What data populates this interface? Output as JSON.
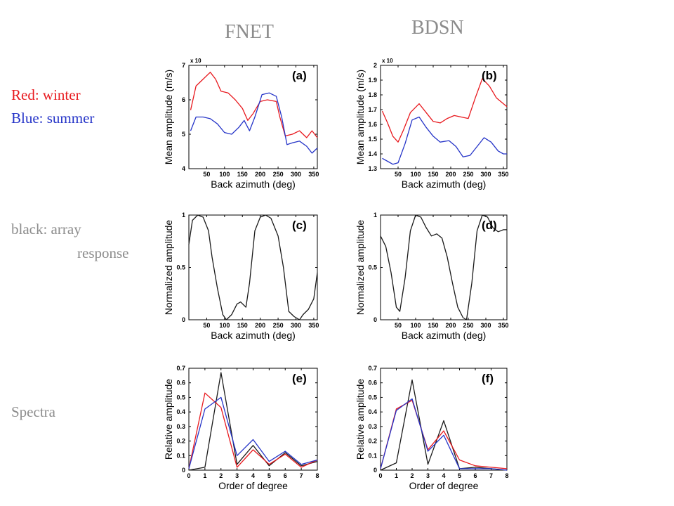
{
  "column_titles": {
    "left": "FNET",
    "right": "BDSN"
  },
  "legend_text": {
    "red": "Red: winter",
    "blue": "Blue: summer",
    "black_line1": "black: array",
    "black_line2": "response",
    "spectra": "Spectra"
  },
  "colors": {
    "red": "#e8191e",
    "blue": "#2534c8",
    "black": "#1a1a1a",
    "title_gray": "#8c8c8c",
    "side_gray": "#8c8c8c"
  },
  "chart_data": [
    {
      "id": "a",
      "tag": "(a)",
      "type": "line",
      "xlabel": "Back azimuth (deg)",
      "ylabel": "Mean amplitude (m/s)",
      "xlim": [
        0,
        360
      ],
      "ylim": [
        4,
        7
      ],
      "xticks": [
        50,
        100,
        150,
        200,
        250,
        300,
        350
      ],
      "yticks": [
        4,
        5,
        6,
        7
      ],
      "y_exponent": "x 10",
      "series": [
        {
          "color": "red",
          "x": [
            5,
            20,
            40,
            60,
            75,
            90,
            110,
            130,
            150,
            165,
            180,
            200,
            220,
            245,
            255,
            270,
            290,
            310,
            330,
            345,
            360
          ],
          "y": [
            5.7,
            6.4,
            6.6,
            6.8,
            6.6,
            6.25,
            6.2,
            6.0,
            5.75,
            5.4,
            5.6,
            5.95,
            6.0,
            5.95,
            5.5,
            4.95,
            5.0,
            5.1,
            4.9,
            5.1,
            4.9
          ]
        },
        {
          "color": "blue",
          "x": [
            5,
            20,
            40,
            60,
            80,
            100,
            120,
            140,
            155,
            170,
            185,
            205,
            225,
            245,
            260,
            275,
            290,
            310,
            330,
            345,
            360
          ],
          "y": [
            5.1,
            5.5,
            5.5,
            5.45,
            5.3,
            5.05,
            5.0,
            5.2,
            5.4,
            5.1,
            5.5,
            6.15,
            6.2,
            6.1,
            5.5,
            4.7,
            4.75,
            4.8,
            4.65,
            4.45,
            4.6
          ]
        }
      ]
    },
    {
      "id": "b",
      "tag": "(b)",
      "type": "line",
      "xlabel": "Back azimuth (deg)",
      "ylabel": "Mean amplitude (m/s)",
      "xlim": [
        0,
        360
      ],
      "ylim": [
        1.3,
        2.0
      ],
      "xticks": [
        50,
        100,
        150,
        200,
        250,
        300,
        350
      ],
      "yticks": [
        1.3,
        1.4,
        1.5,
        1.6,
        1.7,
        1.8,
        1.9,
        2.0
      ],
      "y_exponent": "x 10",
      "series": [
        {
          "color": "red",
          "x": [
            5,
            20,
            35,
            50,
            65,
            85,
            110,
            130,
            150,
            170,
            190,
            210,
            230,
            250,
            270,
            290,
            310,
            330,
            345,
            360
          ],
          "y": [
            1.69,
            1.61,
            1.52,
            1.48,
            1.56,
            1.68,
            1.74,
            1.68,
            1.62,
            1.61,
            1.64,
            1.66,
            1.65,
            1.64,
            1.78,
            1.91,
            1.86,
            1.78,
            1.75,
            1.72
          ]
        },
        {
          "color": "blue",
          "x": [
            5,
            20,
            35,
            50,
            70,
            90,
            110,
            130,
            150,
            170,
            195,
            215,
            235,
            255,
            275,
            295,
            315,
            335,
            350,
            360
          ],
          "y": [
            1.37,
            1.35,
            1.33,
            1.34,
            1.47,
            1.63,
            1.65,
            1.58,
            1.52,
            1.48,
            1.49,
            1.45,
            1.38,
            1.39,
            1.45,
            1.51,
            1.48,
            1.42,
            1.4,
            1.4
          ]
        }
      ]
    },
    {
      "id": "c",
      "tag": "(c)",
      "type": "line",
      "xlabel": "Back azimuth (deg)",
      "ylabel": "Normalized amplitude",
      "xlim": [
        0,
        360
      ],
      "ylim": [
        0,
        1.0
      ],
      "xticks": [
        50,
        100,
        150,
        200,
        250,
        300,
        350
      ],
      "yticks": [
        0,
        0.5,
        1.0
      ],
      "series": [
        {
          "color": "black",
          "x": [
            0,
            10,
            25,
            40,
            55,
            65,
            80,
            95,
            105,
            120,
            135,
            145,
            160,
            170,
            185,
            200,
            215,
            230,
            250,
            265,
            280,
            295,
            310,
            320,
            335,
            350,
            360
          ],
          "y": [
            0.72,
            0.95,
            1.0,
            0.98,
            0.85,
            0.6,
            0.3,
            0.05,
            0.0,
            0.05,
            0.15,
            0.17,
            0.12,
            0.35,
            0.85,
            0.98,
            1.0,
            0.97,
            0.8,
            0.5,
            0.08,
            0.03,
            0.0,
            0.05,
            0.1,
            0.2,
            0.45
          ]
        }
      ]
    },
    {
      "id": "d",
      "tag": "(d)",
      "type": "line",
      "xlabel": "Back azimuth (deg)",
      "ylabel": "Normalized amplitude",
      "xlim": [
        0,
        360
      ],
      "ylim": [
        0,
        1.0
      ],
      "xticks": [
        50,
        100,
        150,
        200,
        250,
        300,
        350
      ],
      "yticks": [
        0,
        0.5,
        1.0
      ],
      "series": [
        {
          "color": "black",
          "x": [
            0,
            15,
            30,
            45,
            55,
            70,
            85,
            100,
            115,
            130,
            145,
            160,
            175,
            190,
            205,
            220,
            235,
            245,
            260,
            275,
            290,
            305,
            320,
            335,
            350,
            360
          ],
          "y": [
            0.8,
            0.7,
            0.45,
            0.12,
            0.08,
            0.4,
            0.85,
            1.0,
            0.98,
            0.88,
            0.8,
            0.82,
            0.78,
            0.6,
            0.35,
            0.12,
            0.02,
            0.0,
            0.35,
            0.85,
            1.0,
            0.98,
            0.88,
            0.84,
            0.86,
            0.86
          ]
        }
      ]
    },
    {
      "id": "e",
      "tag": "(e)",
      "type": "line",
      "xlabel": "Order of degree",
      "ylabel": "Relative amplitude",
      "xlim": [
        0,
        8
      ],
      "ylim": [
        0,
        0.7
      ],
      "xticks": [
        0,
        1,
        2,
        3,
        4,
        5,
        6,
        7,
        8
      ],
      "yticks": [
        0,
        0.1,
        0.2,
        0.3,
        0.4,
        0.5,
        0.6,
        0.7
      ],
      "series": [
        {
          "color": "black",
          "x": [
            0,
            1,
            2,
            3,
            4,
            5,
            6,
            7,
            8
          ],
          "y": [
            0.0,
            0.02,
            0.67,
            0.04,
            0.17,
            0.03,
            0.12,
            0.03,
            0.06
          ]
        },
        {
          "color": "red",
          "x": [
            0,
            1,
            2,
            3,
            4,
            5,
            6,
            7,
            8
          ],
          "y": [
            0.01,
            0.53,
            0.43,
            0.02,
            0.14,
            0.04,
            0.11,
            0.02,
            0.07
          ]
        },
        {
          "color": "blue",
          "x": [
            0,
            1,
            2,
            3,
            4,
            5,
            6,
            7,
            8
          ],
          "y": [
            0.01,
            0.42,
            0.5,
            0.1,
            0.21,
            0.06,
            0.13,
            0.04,
            0.07
          ]
        }
      ]
    },
    {
      "id": "f",
      "tag": "(f)",
      "type": "line",
      "xlabel": "Order of degree",
      "ylabel": "Relative amplitude",
      "xlim": [
        0,
        8
      ],
      "ylim": [
        0,
        0.7
      ],
      "xticks": [
        0,
        1,
        2,
        3,
        4,
        5,
        6,
        7,
        8
      ],
      "yticks": [
        0,
        0.1,
        0.2,
        0.3,
        0.4,
        0.5,
        0.6,
        0.7
      ],
      "series": [
        {
          "color": "black",
          "x": [
            0,
            1,
            2,
            3,
            4,
            5,
            6,
            7,
            8
          ],
          "y": [
            0.0,
            0.05,
            0.62,
            0.04,
            0.34,
            0.01,
            0.02,
            0.01,
            0.0
          ]
        },
        {
          "color": "red",
          "x": [
            0,
            1,
            2,
            3,
            4,
            5,
            6,
            7,
            8
          ],
          "y": [
            0.01,
            0.42,
            0.48,
            0.14,
            0.27,
            0.07,
            0.03,
            0.02,
            0.01
          ]
        },
        {
          "color": "blue",
          "x": [
            0,
            1,
            2,
            3,
            4,
            5,
            6,
            7,
            8
          ],
          "y": [
            0.01,
            0.41,
            0.49,
            0.13,
            0.24,
            0.01,
            0.01,
            0.01,
            0.0
          ]
        }
      ]
    }
  ]
}
